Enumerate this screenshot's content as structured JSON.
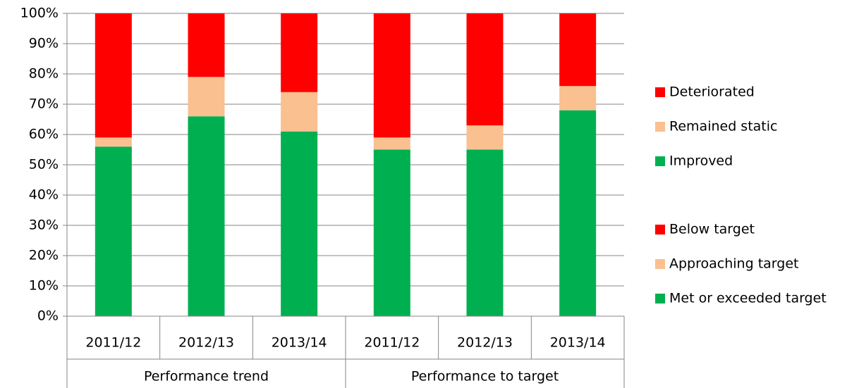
{
  "chart_data": {
    "type": "bar",
    "categories": [
      "2011/12",
      "2012/13",
      "2013/14",
      "2011/12",
      "2012/13",
      "2013/14"
    ],
    "group_labels": [
      "Performance trend",
      "Performance to target"
    ],
    "series": [
      {
        "name": "Deteriorated",
        "color": "#ff0000",
        "values": [
          41,
          21,
          26,
          null,
          null,
          null
        ]
      },
      {
        "name": "Remained static",
        "color": "#fac090",
        "values": [
          3,
          13,
          13,
          null,
          null,
          null
        ]
      },
      {
        "name": "Improved",
        "color": "#00b050",
        "values": [
          56,
          66,
          61,
          null,
          null,
          null
        ]
      },
      {
        "name": "Below target",
        "color": "#ff0000",
        "values": [
          null,
          null,
          null,
          41,
          37,
          24
        ]
      },
      {
        "name": "Approaching target",
        "color": "#fac090",
        "values": [
          null,
          null,
          null,
          4,
          8,
          8
        ]
      },
      {
        "name": "Met or exceeded target",
        "color": "#00b050",
        "values": [
          null,
          null,
          null,
          55,
          55,
          68
        ]
      }
    ],
    "stacked": true,
    "ylim": [
      0,
      100
    ],
    "yticks": [
      {
        "value": 0,
        "label": "0%"
      },
      {
        "value": 10,
        "label": "10%"
      },
      {
        "value": 20,
        "label": "20%"
      },
      {
        "value": 30,
        "label": "30%"
      },
      {
        "value": 40,
        "label": "40%"
      },
      {
        "value": 50,
        "label": "50%"
      },
      {
        "value": 60,
        "label": "60%"
      },
      {
        "value": 70,
        "label": "70%"
      },
      {
        "value": 80,
        "label": "80%"
      },
      {
        "value": 90,
        "label": "90%"
      },
      {
        "value": 100,
        "label": "100%"
      }
    ],
    "grid": true,
    "legend": "right"
  }
}
